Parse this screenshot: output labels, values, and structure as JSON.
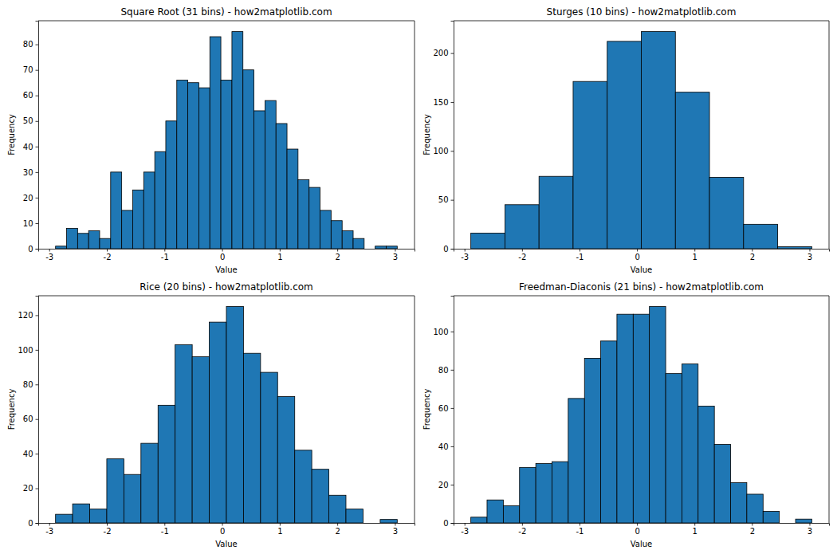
{
  "chart_data": [
    {
      "type": "histogram",
      "title": "Square Root (31 bins) - how2matplotlib.com",
      "x_label": "Value",
      "y_label": "Frequency",
      "color": "#1f77b4",
      "bins": [
        -2.89,
        -2.699,
        -2.507,
        -2.316,
        -2.125,
        -1.934,
        -1.742,
        -1.551,
        -1.36,
        -1.168,
        -0.977,
        -0.786,
        -0.595,
        -0.403,
        -0.212,
        -0.021,
        0.171,
        0.362,
        0.553,
        0.745,
        0.936,
        1.127,
        1.318,
        1.51,
        1.701,
        1.892,
        2.084,
        2.275,
        2.466,
        2.657,
        2.849,
        3.04
      ],
      "values": [
        1,
        8,
        6,
        7,
        4,
        30,
        15,
        23,
        30,
        38,
        50,
        66,
        65,
        63,
        83,
        66,
        85,
        70,
        54,
        58,
        49,
        39,
        27,
        24,
        15,
        11,
        7,
        4,
        0,
        1,
        1
      ],
      "xlim": [
        -3.19,
        3.34
      ],
      "xticks": [
        -3,
        -2,
        -1,
        0,
        1,
        2,
        3
      ],
      "ylim": [
        0,
        89.25
      ],
      "yticks": [
        0,
        10,
        20,
        30,
        40,
        50,
        60,
        70,
        80
      ]
    },
    {
      "type": "histogram",
      "title": "Sturges (10 bins) - how2matplotlib.com",
      "x_label": "Value",
      "y_label": "Frequency",
      "color": "#1f77b4",
      "bins": [
        -2.89,
        -2.297,
        -1.704,
        -1.111,
        -0.518,
        0.075,
        0.668,
        1.261,
        1.854,
        2.447,
        3.04
      ],
      "values": [
        16,
        45,
        74,
        171,
        212,
        222,
        160,
        73,
        25,
        2
      ],
      "xlim": [
        -3.19,
        3.34
      ],
      "xticks": [
        -3,
        -2,
        -1,
        0,
        1,
        2,
        3
      ],
      "ylim": [
        0,
        233.1
      ],
      "yticks": [
        0,
        50,
        100,
        150,
        200
      ]
    },
    {
      "type": "histogram",
      "title": "Rice (20 bins) - how2matplotlib.com",
      "x_label": "Value",
      "y_label": "Frequency",
      "color": "#1f77b4",
      "bins": [
        -2.89,
        -2.594,
        -2.297,
        -2.001,
        -1.704,
        -1.408,
        -1.111,
        -0.815,
        -0.518,
        -0.222,
        0.075,
        0.371,
        0.668,
        0.964,
        1.261,
        1.557,
        1.854,
        2.15,
        2.447,
        2.744,
        3.04
      ],
      "values": [
        5,
        11,
        8,
        37,
        28,
        46,
        68,
        103,
        96,
        116,
        125,
        98,
        87,
        73,
        42,
        31,
        16,
        8,
        0,
        2
      ],
      "xlim": [
        -3.19,
        3.34
      ],
      "xticks": [
        -3,
        -2,
        -1,
        0,
        1,
        2,
        3
      ],
      "ylim": [
        0,
        131.25
      ],
      "yticks": [
        0,
        20,
        40,
        60,
        80,
        100,
        120
      ]
    },
    {
      "type": "histogram",
      "title": "Freedman-Diaconis (21 bins) - how2matplotlib.com",
      "x_label": "Value",
      "y_label": "Frequency",
      "color": "#1f77b4",
      "bins": [
        -2.89,
        -2.608,
        -2.325,
        -2.043,
        -1.76,
        -1.478,
        -1.196,
        -0.913,
        -0.631,
        -0.349,
        -0.066,
        0.216,
        0.499,
        0.781,
        1.063,
        1.346,
        1.628,
        1.91,
        2.193,
        2.475,
        2.758,
        3.04
      ],
      "values": [
        3,
        12,
        9,
        29,
        31,
        32,
        65,
        86,
        95,
        109,
        109,
        113,
        78,
        83,
        61,
        41,
        21,
        15,
        6,
        0,
        2
      ],
      "xlim": [
        -3.19,
        3.34
      ],
      "xticks": [
        -3,
        -2,
        -1,
        0,
        1,
        2,
        3
      ],
      "ylim": [
        0,
        118.65
      ],
      "yticks": [
        0,
        20,
        40,
        60,
        80,
        100
      ]
    }
  ]
}
